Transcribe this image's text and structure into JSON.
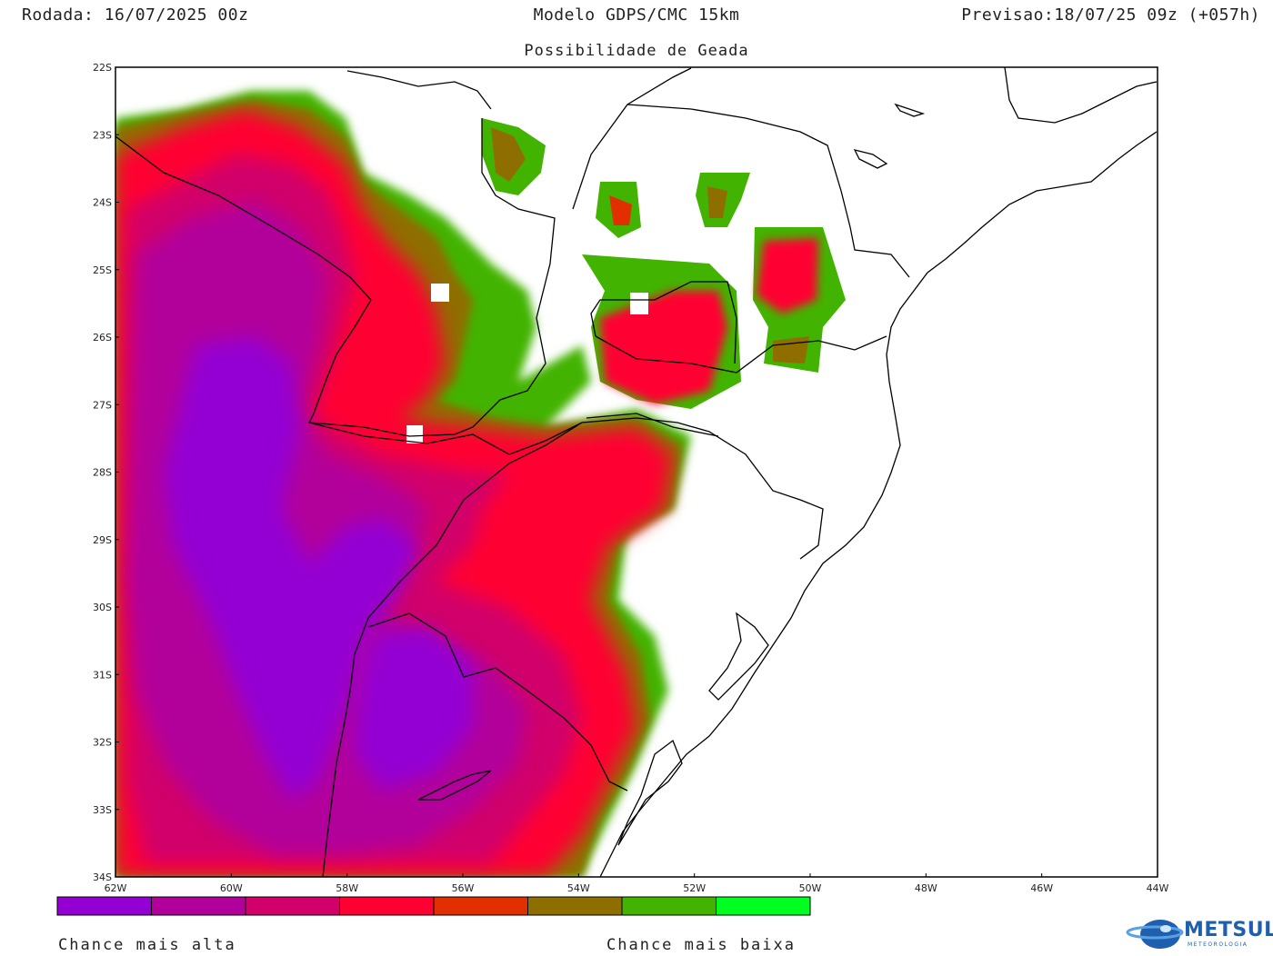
{
  "header": {
    "run": "Rodada: 16/07/2025 00z",
    "model": "Modelo GDPS/CMC 15km",
    "forecast": "Previsao:18/07/25 09z (+057h)"
  },
  "subtitle": "Possibilidade de Geada",
  "map": {
    "lat_labels": [
      "22S",
      "23S",
      "24S",
      "25S",
      "26S",
      "27S",
      "28S",
      "29S",
      "30S",
      "31S",
      "32S",
      "33S",
      "34S"
    ],
    "lon_labels": [
      "62W",
      "60W",
      "58W",
      "56W",
      "54W",
      "52W",
      "50W",
      "48W",
      "46W",
      "44W"
    ],
    "lon_range": [
      -62,
      -44
    ],
    "lat_range": [
      -34,
      -22
    ]
  },
  "legend": {
    "colors": [
      "#9400d3",
      "#b2009b",
      "#d1006a",
      "#ff0033",
      "#e12f00",
      "#8f6e00",
      "#42b300",
      "#00ff21"
    ],
    "high_label": "Chance mais alta",
    "low_label": "Chance mais baixa"
  },
  "logo": {
    "name": "METSUL",
    "tagline": "METEOROLOGIA"
  }
}
